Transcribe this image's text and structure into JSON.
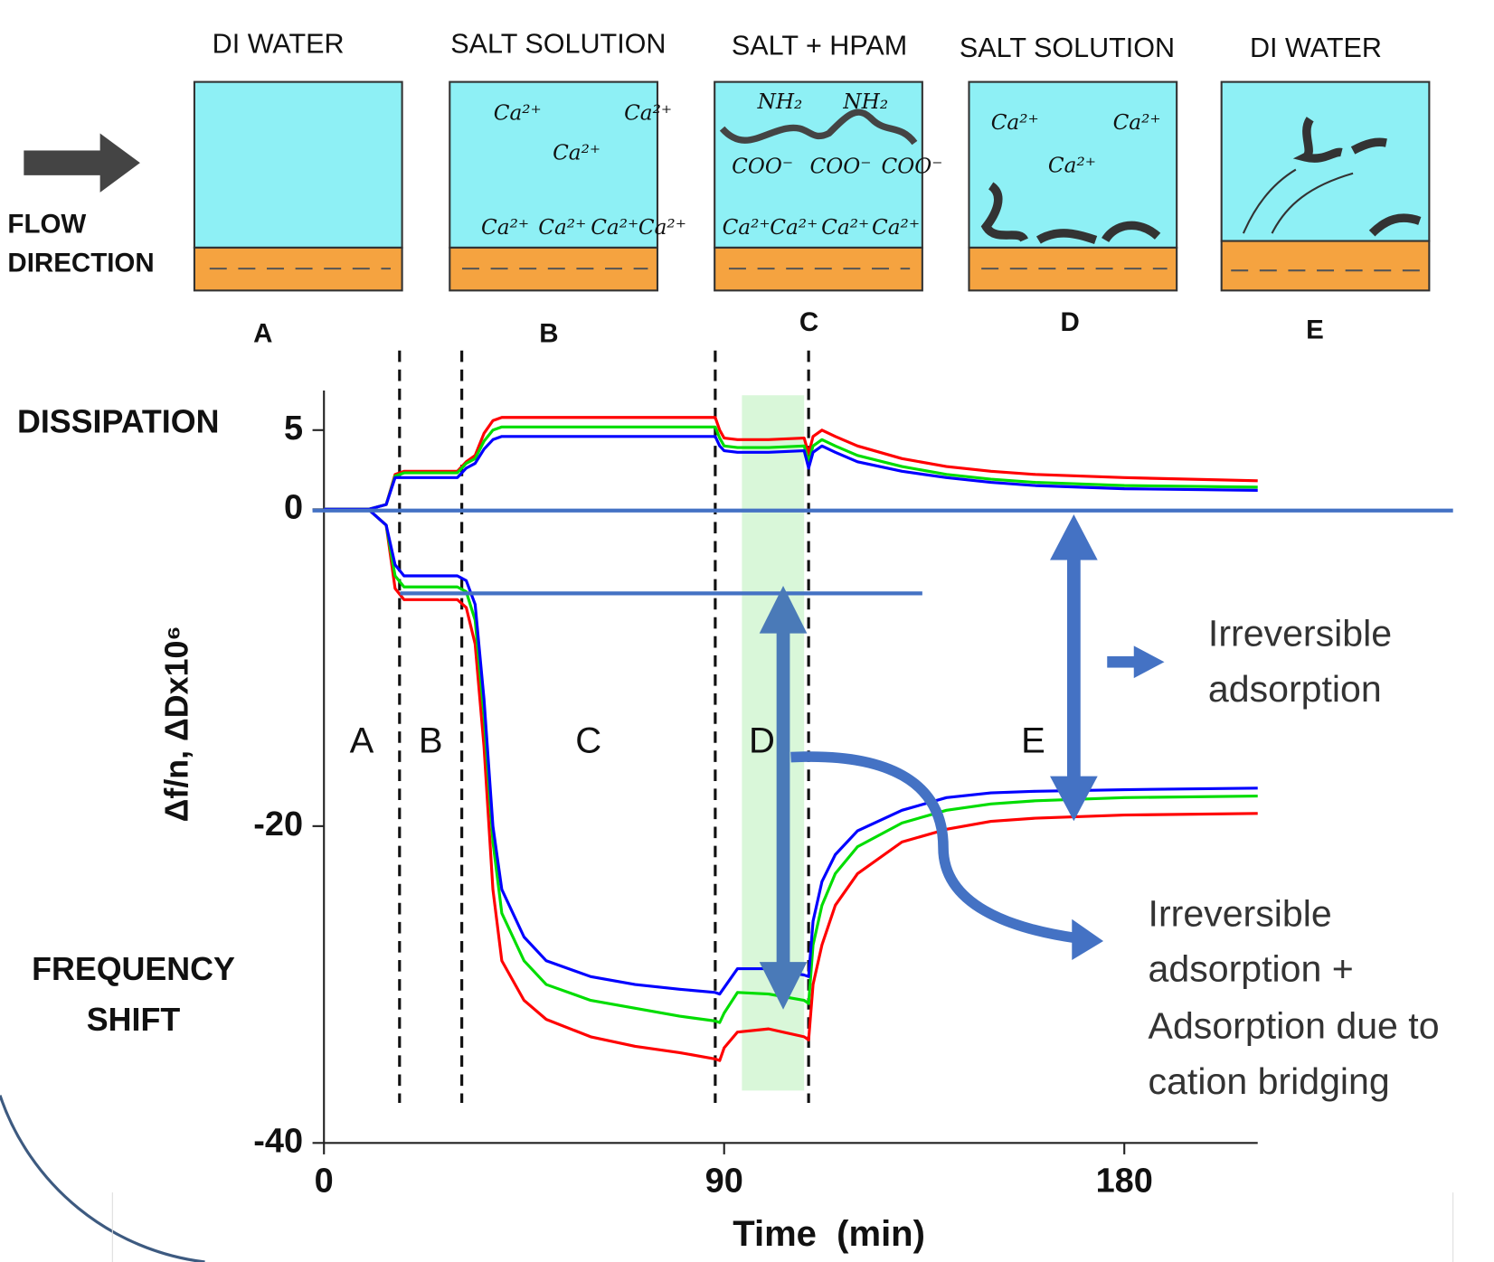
{
  "chart_data": {
    "type": "line",
    "y_label": "Δf/n, ΔDx10⁶",
    "x_label": "Time  (min)",
    "dissipation_label": "DISSIPATION",
    "frequency_label": [
      "FREQUENCY",
      "SHIFT"
    ],
    "xlim": [
      0,
      210
    ],
    "xticks": [
      0,
      90,
      180
    ],
    "ylim": [
      -40,
      7.5
    ],
    "yticks": [
      -40,
      -20,
      0,
      5
    ],
    "phase_boundaries": [
      17,
      31,
      88,
      109
    ],
    "phase_labels": [
      "A",
      "B",
      "C",
      "D",
      "E"
    ],
    "shaded_span": {
      "x": [
        94,
        108
      ],
      "color": "#d9f7d9"
    },
    "x": [
      0,
      10,
      14,
      16,
      18,
      30,
      32,
      34,
      36,
      38,
      40,
      45,
      50,
      60,
      70,
      80,
      88,
      89,
      90,
      93,
      100,
      108,
      109,
      110,
      112,
      115,
      120,
      130,
      140,
      150,
      160,
      180,
      210
    ],
    "series": [
      {
        "color": "#ff0000",
        "values": [
          0,
          0,
          0.3,
          2.2,
          2.4,
          2.4,
          3.0,
          3.4,
          4.8,
          5.6,
          5.8,
          5.8,
          5.8,
          5.8,
          5.8,
          5.8,
          5.8,
          5.0,
          4.5,
          4.4,
          4.4,
          4.5,
          3.5,
          4.6,
          5.0,
          4.6,
          4.0,
          3.2,
          2.7,
          2.4,
          2.2,
          2.0,
          1.8
        ]
      },
      {
        "color": "#00dd00",
        "values": [
          0,
          0,
          0.3,
          2.1,
          2.3,
          2.3,
          2.9,
          3.2,
          4.3,
          5.0,
          5.2,
          5.2,
          5.2,
          5.2,
          5.2,
          5.2,
          5.2,
          4.5,
          4.0,
          3.9,
          3.9,
          4.0,
          3.0,
          4.0,
          4.4,
          4.0,
          3.4,
          2.7,
          2.2,
          1.9,
          1.7,
          1.5,
          1.4
        ]
      },
      {
        "color": "#0000ff",
        "values": [
          0,
          0,
          0.3,
          2.0,
          2.0,
          2.0,
          2.6,
          2.9,
          3.8,
          4.4,
          4.6,
          4.6,
          4.6,
          4.6,
          4.6,
          4.6,
          4.6,
          4.0,
          3.7,
          3.6,
          3.6,
          3.7,
          2.6,
          3.6,
          4.0,
          3.6,
          3.0,
          2.4,
          2.0,
          1.7,
          1.5,
          1.3,
          1.2
        ]
      },
      {
        "color": "#ff0000",
        "values": [
          0,
          0,
          -1,
          -5,
          -5.7,
          -5.7,
          -6.2,
          -8.5,
          -15,
          -24,
          -28.5,
          -31,
          -32.2,
          -33.3,
          -33.9,
          -34.3,
          -34.7,
          -34.8,
          -34.0,
          -33.0,
          -32.8,
          -33.3,
          -33.5,
          -30,
          -27.5,
          -25,
          -23,
          -21,
          -20.2,
          -19.7,
          -19.5,
          -19.3,
          -19.2
        ]
      },
      {
        "color": "#00dd00",
        "values": [
          0,
          0,
          -1,
          -4.2,
          -4.9,
          -4.9,
          -5.2,
          -7,
          -13,
          -21,
          -25.5,
          -28.5,
          -30,
          -31,
          -31.5,
          -32,
          -32.3,
          -32.4,
          -31.8,
          -30.5,
          -30.6,
          -31,
          -31.2,
          -27.5,
          -25,
          -23,
          -21.3,
          -19.8,
          -19,
          -18.6,
          -18.4,
          -18.2,
          -18.1
        ]
      },
      {
        "color": "#0000ff",
        "values": [
          0,
          0,
          -1,
          -3.5,
          -4.2,
          -4.2,
          -4.5,
          -6,
          -12,
          -20,
          -24,
          -27,
          -28.5,
          -29.5,
          -30,
          -30.3,
          -30.5,
          -30.6,
          -30.2,
          -29.0,
          -29.0,
          -29.4,
          -29.5,
          -26,
          -23.5,
          -21.8,
          -20.3,
          -19,
          -18.2,
          -17.9,
          -17.8,
          -17.7,
          -17.6
        ]
      }
    ],
    "annotations": [
      {
        "lines": [
          "Irreversible",
          "adsorption"
        ]
      },
      {
        "lines": [
          "Irreversible",
          "adsorption +",
          "Adsorption due to",
          "cation bridging"
        ]
      }
    ]
  },
  "flow_label": [
    "FLOW",
    "DIRECTION"
  ],
  "panels": [
    {
      "title": "DI WATER",
      "letter": "A",
      "labels": []
    },
    {
      "title": "SALT SOLUTION",
      "letter": "B",
      "labels": [
        "Ca²⁺",
        "Ca²⁺",
        "Ca²⁺",
        "Ca²⁺",
        "Ca²⁺",
        "Ca²⁺",
        "Ca²⁺"
      ]
    },
    {
      "title": "SALT + HPAM",
      "letter": "C",
      "labels": [
        "NH₂",
        "NH₂",
        "COO⁻",
        "COO⁻",
        "COO⁻",
        "Ca²⁺",
        "Ca²⁺",
        "Ca²⁺",
        "Ca²⁺"
      ]
    },
    {
      "title": "SALT SOLUTION",
      "letter": "D",
      "labels": [
        "Ca²⁺",
        "Ca²⁺",
        "Ca²⁺"
      ]
    },
    {
      "title": "DI WATER",
      "letter": "E",
      "labels": []
    }
  ]
}
